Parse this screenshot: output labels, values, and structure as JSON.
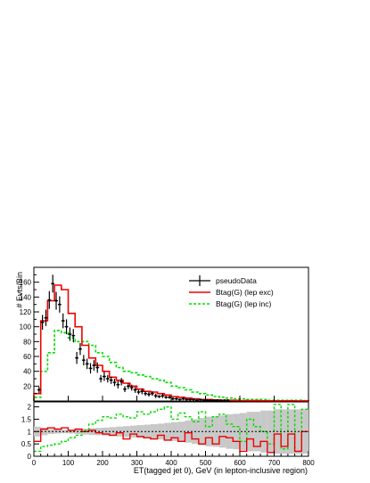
{
  "chart_data": [
    {
      "type": "histogram",
      "panel": "main",
      "ylabel": "# Evts/Bin",
      "xlim": [
        0,
        800
      ],
      "ylim": [
        0,
        180
      ],
      "bin_width": 20,
      "yticks": [
        20,
        40,
        60,
        80,
        100,
        120,
        140,
        160
      ],
      "yminor": [
        10,
        30,
        50,
        70,
        90,
        110,
        130,
        150,
        170
      ],
      "legend_position": "top-right",
      "legend": [
        {
          "label": "pseudoData",
          "style": "markers"
        },
        {
          "label": "Btag(G) (lep exc)",
          "style": "solid"
        },
        {
          "label": "Btag(G) (lep inc)",
          "style": "dashed"
        }
      ],
      "series": [
        {
          "name": "pseudoData",
          "color": "#000000",
          "x": [
            15,
            25,
            35,
            45,
            55,
            65,
            75,
            85,
            95,
            105,
            115,
            125,
            135,
            145,
            155,
            165,
            175,
            185,
            195,
            205,
            215,
            225,
            235,
            245,
            255,
            265,
            275,
            285,
            295,
            305,
            315,
            325,
            335,
            345,
            355,
            365,
            375,
            385,
            395,
            405,
            415,
            425,
            435,
            445,
            455,
            465,
            475,
            485,
            495,
            505,
            515,
            525,
            535,
            545,
            555,
            565,
            575,
            585,
            595,
            605,
            615,
            625,
            635,
            645,
            655,
            665,
            675,
            685,
            695,
            705,
            715,
            725,
            735,
            745,
            755,
            765,
            775,
            785,
            795
          ],
          "y": [
            15,
            106,
            112,
            136,
            158,
            135,
            130,
            108,
            100,
            90,
            88,
            58,
            70,
            55,
            50,
            44,
            48,
            45,
            30,
            33,
            30,
            28,
            25,
            22,
            26,
            16,
            20,
            18,
            15,
            12,
            13,
            10,
            9,
            10,
            7,
            6,
            7,
            5,
            5,
            3,
            3,
            2,
            3,
            2,
            2,
            2,
            1,
            2,
            1,
            1,
            1,
            1,
            1,
            1,
            1,
            1,
            0,
            0,
            0,
            0,
            0,
            0,
            0,
            0,
            0,
            0,
            0,
            0,
            0,
            0,
            0,
            0,
            0,
            0,
            0,
            0,
            0,
            0,
            0
          ],
          "yerr": [
            4,
            10,
            11,
            12,
            12,
            12,
            11,
            10,
            10,
            9,
            9,
            8,
            8,
            7,
            7,
            7,
            7,
            7,
            5,
            6,
            5,
            5,
            5,
            5,
            5,
            4,
            4,
            4,
            4,
            3,
            4,
            3,
            3,
            3,
            3,
            2,
            3,
            2,
            2,
            2,
            2,
            1,
            2,
            1,
            1,
            1,
            1,
            1,
            1,
            1,
            1,
            1,
            1,
            1,
            1,
            1,
            0,
            0,
            0,
            0,
            0,
            0,
            0,
            0,
            0,
            0,
            0,
            0,
            0,
            0,
            0,
            0,
            0,
            0,
            0,
            0,
            0,
            0,
            0
          ]
        },
        {
          "name": "Btag(G) (lep exc)",
          "color": "#ee0000",
          "bin_edges": [
            0,
            20,
            40,
            60,
            80,
            100,
            120,
            140,
            160,
            180,
            200,
            220,
            240,
            260,
            280,
            300,
            320,
            340,
            360,
            380,
            400,
            420,
            440,
            460,
            480,
            500,
            520,
            540,
            560,
            580,
            600,
            620,
            640,
            660,
            680,
            700,
            720,
            740,
            760,
            780,
            800
          ],
          "values": [
            10,
            108,
            135,
            156,
            150,
            118,
            100,
            75,
            58,
            48,
            40,
            32,
            28,
            24,
            20,
            16,
            13,
            12,
            10,
            8,
            6,
            5,
            4,
            3,
            2,
            2,
            1.5,
            1,
            1,
            0.8,
            0.6,
            0.5,
            0.5,
            0.3,
            0.3,
            0.2,
            0.2,
            0.2,
            0.1,
            0.1
          ]
        },
        {
          "name": "Btag(G) (lep inc)",
          "color": "#00dd00",
          "bin_edges": [
            0,
            20,
            40,
            60,
            80,
            100,
            120,
            140,
            160,
            180,
            200,
            220,
            240,
            260,
            280,
            300,
            320,
            340,
            360,
            380,
            400,
            420,
            440,
            460,
            480,
            500,
            520,
            540,
            560,
            580,
            600,
            620,
            640,
            660,
            680,
            700,
            720,
            740,
            760,
            780,
            800
          ],
          "values": [
            5,
            40,
            65,
            95,
            92,
            85,
            80,
            80,
            75,
            65,
            60,
            52,
            45,
            40,
            38,
            35,
            33,
            30,
            28,
            25,
            20,
            18,
            15,
            12,
            10,
            8,
            6,
            5,
            4,
            3,
            3,
            2,
            2,
            2,
            1,
            1,
            1,
            1,
            1,
            0.5
          ]
        }
      ]
    },
    {
      "type": "ratio",
      "panel": "ratio",
      "xlabel": "ET(tagged jet 0), GeV (in lepton-inclusive region)",
      "xlim": [
        0,
        800
      ],
      "ylim": [
        0,
        2.2
      ],
      "yticks": [
        0,
        0.5,
        1,
        1.5,
        2
      ],
      "ytick_labels": [
        "0",
        "0.5",
        "1",
        "1.5",
        "2"
      ],
      "xticks": [
        0,
        100,
        200,
        300,
        400,
        500,
        600,
        700,
        800
      ],
      "xtick_labels": [
        "0",
        "100",
        "200",
        "300",
        "400",
        "500",
        "600",
        "700",
        "800"
      ],
      "reference_line": 1,
      "band": {
        "color": "#c8c8c8",
        "bin_edges": [
          0,
          20,
          40,
          60,
          80,
          100,
          120,
          140,
          160,
          180,
          200,
          220,
          240,
          260,
          280,
          300,
          320,
          340,
          360,
          380,
          400,
          420,
          440,
          460,
          480,
          500,
          520,
          540,
          560,
          580,
          600,
          620,
          640,
          660,
          680,
          700,
          720,
          740,
          760,
          780,
          800
        ],
        "low": [
          0.8,
          0.85,
          0.9,
          0.92,
          0.93,
          0.92,
          0.9,
          0.88,
          0.86,
          0.85,
          0.84,
          0.82,
          0.8,
          0.78,
          0.76,
          0.74,
          0.72,
          0.7,
          0.68,
          0.65,
          0.62,
          0.6,
          0.55,
          0.5,
          0.45,
          0.4,
          0.38,
          0.35,
          0.3,
          0.28,
          0.25,
          0.2,
          0.2,
          0.15,
          0.15,
          0.1,
          0.1,
          0.1,
          0.1,
          0.1
        ],
        "high": [
          1.2,
          1.15,
          1.1,
          1.08,
          1.07,
          1.08,
          1.1,
          1.12,
          1.14,
          1.15,
          1.16,
          1.18,
          1.2,
          1.22,
          1.24,
          1.26,
          1.28,
          1.3,
          1.32,
          1.35,
          1.38,
          1.4,
          1.45,
          1.5,
          1.55,
          1.6,
          1.62,
          1.65,
          1.7,
          1.72,
          1.75,
          1.8,
          1.8,
          1.85,
          1.85,
          1.9,
          1.9,
          1.9,
          1.9,
          1.9
        ]
      },
      "series": [
        {
          "name": "Btag(G) (lep exc)",
          "color": "#ee0000",
          "bin_edges": [
            0,
            20,
            40,
            60,
            80,
            100,
            120,
            140,
            160,
            180,
            200,
            220,
            240,
            260,
            280,
            300,
            320,
            340,
            360,
            380,
            400,
            420,
            440,
            460,
            480,
            500,
            520,
            540,
            560,
            580,
            600,
            620,
            640,
            660,
            680,
            700,
            720,
            740,
            760,
            780,
            800
          ],
          "values": [
            0.6,
            1.1,
            1.15,
            1.1,
            1.15,
            1.05,
            1.1,
            1.0,
            1.05,
            0.95,
            0.9,
            0.85,
            0.95,
            0.7,
            0.9,
            0.8,
            0.75,
            0.7,
            0.85,
            0.65,
            0.75,
            0.6,
            0.95,
            0.7,
            0.5,
            0.75,
            0.5,
            0.8,
            0.75,
            0.6,
            0.2,
            0.7,
            0.4,
            0.6,
            0.15,
            0.9,
            0.4,
            0.9,
            0.2,
            1.0
          ]
        },
        {
          "name": "Btag(G) (lep inc)",
          "color": "#00dd00",
          "bin_edges": [
            0,
            20,
            40,
            60,
            80,
            100,
            120,
            140,
            160,
            180,
            200,
            220,
            240,
            260,
            280,
            300,
            320,
            340,
            360,
            380,
            400,
            420,
            440,
            460,
            480,
            500,
            520,
            540,
            560,
            580,
            600,
            620,
            640,
            660,
            680,
            700,
            720,
            740,
            760,
            780,
            800
          ],
          "values": [
            0.2,
            0.4,
            0.45,
            0.5,
            0.6,
            0.75,
            0.85,
            1.05,
            1.3,
            1.45,
            1.6,
            1.55,
            1.7,
            1.6,
            1.55,
            1.8,
            1.7,
            1.8,
            1.9,
            2.0,
            1.5,
            1.75,
            1.6,
            1.4,
            1.8,
            1.2,
            1.6,
            1.7,
            1.3,
            1.2,
            0.6,
            1.5,
            1.2,
            1.0,
            0.5,
            2.1,
            0.3,
            2.1,
            0.2,
            1.9
          ]
        }
      ]
    }
  ]
}
